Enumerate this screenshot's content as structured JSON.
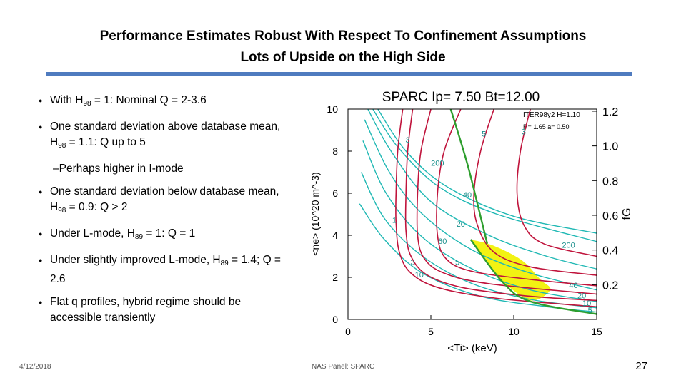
{
  "slide": {
    "title_line1": "Performance Estimates Robust With Respect To Confinement Assumptions",
    "title_line2": "Lots of Upside on the High Side",
    "bullets": [
      {
        "pre": "With H",
        "sub": "98",
        "post": " = 1: Nominal Q = 2-3.6"
      },
      {
        "pre": "One standard deviation above database mean, H",
        "sub": "98",
        "post": " = 1.1:   Q up to 5"
      },
      {
        "pre": "One standard deviation below database mean, H",
        "sub": "98",
        "post": " = 0.9:   Q > 2"
      },
      {
        "pre": "Under L-mode, H",
        "sub": "89",
        "post": " = 1:  Q = 1"
      },
      {
        "pre": "Under slightly improved L-mode, H",
        "sub": "89",
        "post": " = 1.4;  Q = 2.6"
      },
      {
        "pre": "Flat q profiles, hybrid regime should be accessible transiently",
        "sub": "",
        "post": ""
      }
    ],
    "sub_bullet": "Perhaps higher in I-mode",
    "date": "4/12/2018",
    "footer_center": "NAS Panel: SPARC",
    "page": "27"
  },
  "chart_data": {
    "type": "line",
    "title": "SPARC Ip= 7.50 Bt=12.00",
    "annotation_line1": "ITER98y2 H=1.10",
    "annotation_line2": "R= 1.65 a= 0.50",
    "xlabel": "<Ti> (keV)",
    "ylabel": "<ne> (10^20 m^-3)",
    "y2label": "fG",
    "xlim": [
      0,
      15
    ],
    "ylim": [
      0,
      10
    ],
    "xticks": [
      "0",
      "5",
      "10",
      "15"
    ],
    "yticks": [
      "0",
      "2",
      "4",
      "6",
      "8",
      "10"
    ],
    "y2ticks": [
      "0.2",
      "0.4",
      "0.6",
      "0.8",
      "1.0",
      "1.2"
    ],
    "colors": {
      "q_contours": "#c0143c",
      "power_contours": "#1fb8b4",
      "boundary": "#2e9e2e",
      "region": "#f2f213"
    },
    "contour_labels": [
      {
        "text": "3",
        "x": 3.6,
        "y": 8.4
      },
      {
        "text": "5",
        "x": 8.2,
        "y": 8.7
      },
      {
        "text": "3",
        "x": 10.6,
        "y": 8.8
      },
      {
        "text": "200",
        "x": 5.4,
        "y": 7.3
      },
      {
        "text": "40",
        "x": 7.2,
        "y": 5.8
      },
      {
        "text": "20",
        "x": 6.8,
        "y": 4.4
      },
      {
        "text": "1",
        "x": 2.8,
        "y": 4.6
      },
      {
        "text": "60",
        "x": 5.7,
        "y": 3.6
      },
      {
        "text": "5",
        "x": 6.6,
        "y": 2.6
      },
      {
        "text": "3",
        "x": 3.9,
        "y": 2.6
      },
      {
        "text": "10",
        "x": 4.3,
        "y": 2.0
      },
      {
        "text": "200",
        "x": 13.3,
        "y": 3.4
      },
      {
        "text": "40",
        "x": 13.6,
        "y": 1.5
      },
      {
        "text": "20",
        "x": 14.1,
        "y": 1.0
      },
      {
        "text": "10",
        "x": 14.4,
        "y": 0.65
      },
      {
        "text": "5",
        "x": 14.6,
        "y": 0.3
      }
    ],
    "q_contours": [
      [
        [
          3.3,
          10
        ],
        [
          3.0,
          8
        ],
        [
          2.9,
          6
        ],
        [
          2.9,
          4.6
        ],
        [
          3.1,
          3.2
        ],
        [
          3.8,
          2.2
        ],
        [
          5.5,
          1.5
        ],
        [
          9,
          1.0
        ],
        [
          15,
          0.6
        ]
      ],
      [
        [
          3.9,
          10
        ],
        [
          3.6,
          8
        ],
        [
          3.5,
          6
        ],
        [
          3.5,
          4.2
        ],
        [
          3.8,
          3.0
        ],
        [
          4.8,
          2.1
        ],
        [
          7,
          1.5
        ],
        [
          11,
          1.1
        ],
        [
          15,
          0.9
        ]
      ],
      [
        [
          5.0,
          10
        ],
        [
          4.4,
          8
        ],
        [
          4.2,
          6
        ],
        [
          4.2,
          4
        ],
        [
          4.6,
          2.9
        ],
        [
          5.8,
          2.2
        ],
        [
          8.5,
          1.7
        ],
        [
          15,
          1.2
        ]
      ],
      [
        [
          6.8,
          10
        ],
        [
          5.8,
          8
        ],
        [
          5.4,
          6
        ],
        [
          5.4,
          4
        ],
        [
          5.9,
          2.9
        ],
        [
          7.4,
          2.3
        ],
        [
          11,
          1.9
        ],
        [
          15,
          1.6
        ]
      ],
      [
        [
          8.8,
          10
        ],
        [
          8.0,
          8
        ],
        [
          7.6,
          6
        ],
        [
          7.8,
          4.5
        ],
        [
          8.8,
          3.2
        ],
        [
          11,
          2.5
        ],
        [
          15,
          2.1
        ]
      ],
      [
        [
          11.0,
          10
        ],
        [
          10.4,
          8
        ],
        [
          10.2,
          6
        ],
        [
          10.6,
          4.5
        ],
        [
          11.8,
          3.6
        ],
        [
          15,
          3.0
        ]
      ]
    ],
    "power_contours": [
      [
        [
          1.8,
          10
        ],
        [
          3.5,
          8
        ],
        [
          6,
          6.3
        ],
        [
          10,
          4.9
        ],
        [
          15,
          4.1
        ]
      ],
      [
        [
          1.5,
          10
        ],
        [
          3,
          8.2
        ],
        [
          5.5,
          6.3
        ],
        [
          9,
          5.0
        ],
        [
          15,
          3.7
        ]
      ],
      [
        [
          1.2,
          10
        ],
        [
          2.6,
          8
        ],
        [
          5,
          5.6
        ],
        [
          8.5,
          4.0
        ],
        [
          12,
          3.0
        ],
        [
          15,
          2.4
        ]
      ],
      [
        [
          1.0,
          9.5
        ],
        [
          2.5,
          7
        ],
        [
          4.5,
          5
        ],
        [
          7.5,
          3.3
        ],
        [
          11,
          2.2
        ],
        [
          15,
          1.4
        ]
      ],
      [
        [
          0.9,
          8.5
        ],
        [
          2.3,
          6
        ],
        [
          4.5,
          3.9
        ],
        [
          7.5,
          2.4
        ],
        [
          11,
          1.4
        ],
        [
          15,
          0.85
        ]
      ],
      [
        [
          0.8,
          7
        ],
        [
          2.2,
          4.8
        ],
        [
          4.5,
          3.0
        ],
        [
          7.5,
          1.7
        ],
        [
          11,
          0.95
        ],
        [
          15,
          0.55
        ]
      ],
      [
        [
          0.7,
          5.5
        ],
        [
          2.2,
          3.8
        ],
        [
          4.5,
          2.2
        ],
        [
          8,
          1.1
        ],
        [
          12,
          0.6
        ],
        [
          15,
          0.35
        ]
      ]
    ],
    "density_limit": [
      [
        6.2,
        10
      ],
      [
        7.2,
        7.4
      ],
      [
        7.9,
        5.2
      ],
      [
        8.4,
        3.6
      ]
    ],
    "boundary": [
      [
        7.4,
        3.8
      ],
      [
        9.3,
        1.8
      ],
      [
        11,
        0.85
      ],
      [
        15,
        0.25
      ]
    ],
    "operating_region": [
      [
        7.4,
        3.8
      ],
      [
        8.8,
        3.5
      ],
      [
        10.5,
        2.8
      ],
      [
        11.6,
        1.9
      ],
      [
        12.2,
        1.4
      ],
      [
        11,
        0.9
      ],
      [
        9.3,
        1.8
      ]
    ]
  }
}
